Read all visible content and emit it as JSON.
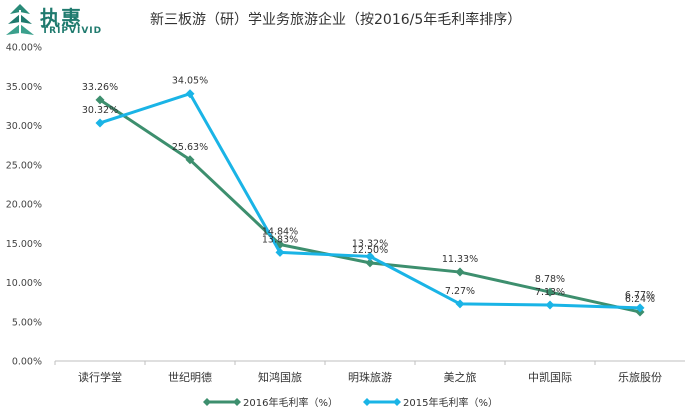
{
  "logo": {
    "cn": "执惠",
    "en": "TRIPVIVID"
  },
  "chart_data": {
    "type": "line",
    "title": "新三板游（研）学业务旅游企业（按2016/5年毛利率排序）",
    "categories": [
      "读行学堂",
      "世纪明德",
      "知鸿国旅",
      "明珠旅游",
      "美之旅",
      "中凯国际",
      "乐旅股份"
    ],
    "yticks": [
      "0.00%",
      "5.00%",
      "10.00%",
      "15.00%",
      "20.00%",
      "25.00%",
      "30.00%",
      "35.00%",
      "40.00%"
    ],
    "ylim": [
      0,
      40
    ],
    "grid": false,
    "legend_position": "bottom",
    "series": [
      {
        "name": "2016年毛利率（%）",
        "color": "#3d8f6e",
        "marker": "diamond",
        "values": [
          33.26,
          25.63,
          14.84,
          12.5,
          11.33,
          8.78,
          6.24
        ],
        "labels": [
          "33.26%",
          "25.63%",
          "14.84%",
          "12.50%",
          "11.33%",
          "8.78%",
          "6.24%"
        ]
      },
      {
        "name": "2015年毛利率（%）",
        "color": "#1ab4e6",
        "marker": "diamond",
        "values": [
          30.32,
          34.05,
          13.83,
          13.32,
          7.27,
          7.13,
          6.77
        ],
        "labels": [
          "30.32%",
          "34.05%",
          "13.83%",
          "13.32%",
          "7.27%",
          "7.13%",
          "6.77%"
        ]
      }
    ]
  }
}
